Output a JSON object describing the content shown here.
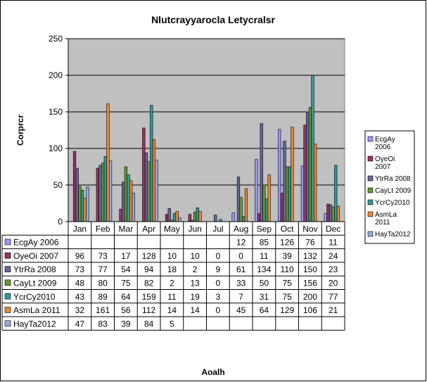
{
  "chart_data": {
    "type": "bar",
    "title": "Nlutcrayyarocla Letycralsr",
    "xlabel": "Aoalh",
    "ylabel": "Corprcr",
    "ylim": [
      0,
      250
    ],
    "yticks": [
      0,
      50,
      100,
      150,
      200,
      250
    ],
    "grid": true,
    "legend_position": "right",
    "categories": [
      "Jan",
      "Feb",
      "Mar",
      "Apr",
      "May",
      "Jun",
      "Jul",
      "Aug",
      "Sep",
      "Oct",
      "Nov",
      "Dec"
    ],
    "series": [
      {
        "name": "EcgAy 2006",
        "legend_lines": [
          "EcgAy",
          "2006"
        ],
        "color": "#9999ff",
        "values": [
          null,
          null,
          null,
          null,
          null,
          null,
          null,
          12,
          85,
          126,
          76,
          11
        ]
      },
      {
        "name": "OyeOi 2007",
        "legend_lines": [
          "OyeOi",
          "2007"
        ],
        "color": "#993366",
        "values": [
          96,
          73,
          17,
          128,
          10,
          10,
          0,
          0,
          11,
          39,
          132,
          24
        ]
      },
      {
        "name": "YtrRa 2008",
        "legend_lines": [
          "YtrRa 2008"
        ],
        "color": "#666699",
        "values": [
          73,
          77,
          54,
          94,
          18,
          2,
          9,
          61,
          134,
          110,
          150,
          23
        ]
      },
      {
        "name": "CayLt 2009",
        "legend_lines": [
          "CayLt 2009"
        ],
        "color": "#669933",
        "values": [
          48,
          80,
          75,
          82,
          2,
          13,
          0,
          33,
          50,
          75,
          156,
          20
        ]
      },
      {
        "name": "YcrCy2010",
        "legend_lines": [
          "YcrCy2010"
        ],
        "color": "#339999",
        "values": [
          43,
          89,
          64,
          159,
          11,
          19,
          3,
          7,
          31,
          75,
          200,
          77
        ]
      },
      {
        "name": "AsmLa 2011",
        "legend_lines": [
          "AsmLa",
          "2011"
        ],
        "color": "#ee8833",
        "values": [
          32,
          161,
          56,
          112,
          14,
          14,
          0,
          45,
          64,
          129,
          106,
          21
        ]
      },
      {
        "name": "HayTa2012",
        "legend_lines": [
          "HayTa2012"
        ],
        "color": "#99aadd",
        "values": [
          47,
          83,
          39,
          84,
          5,
          null,
          null,
          null,
          null,
          null,
          null,
          null
        ]
      }
    ]
  }
}
